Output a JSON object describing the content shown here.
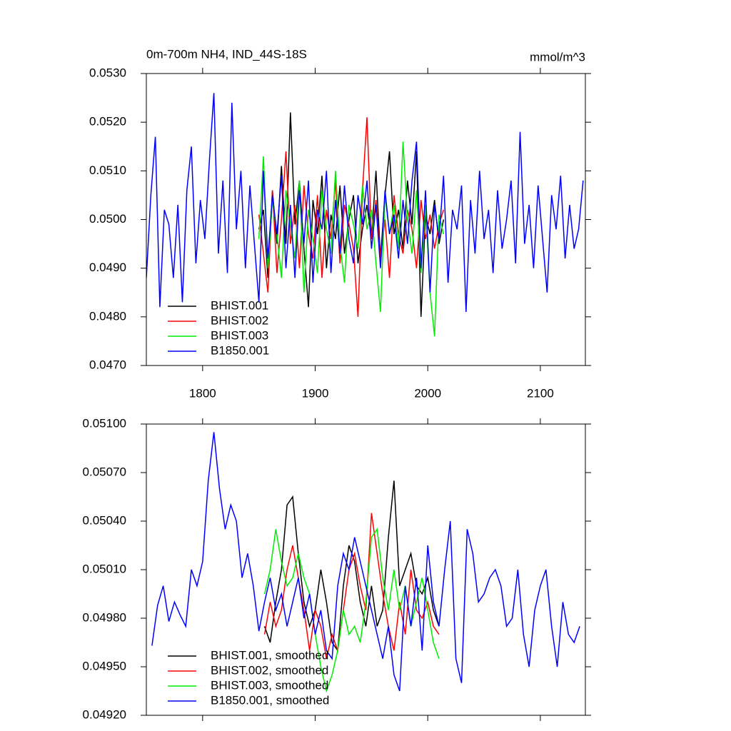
{
  "chart_data": [
    {
      "type": "line",
      "title": "0m-700m NH4, IND_44S-18S",
      "units": "mmol/m^3",
      "xlim": [
        1750,
        2140
      ],
      "xticks": [
        1800,
        1900,
        2000,
        2100
      ],
      "show_xtick_labels": true,
      "ylim": [
        0.047,
        0.053
      ],
      "yticks": [
        {
          "value": 0.047,
          "label": "0.0470"
        },
        {
          "value": 0.048,
          "label": "0.0480"
        },
        {
          "value": 0.049,
          "label": "0.0490"
        },
        {
          "value": 0.05,
          "label": "0.0500"
        },
        {
          "value": 0.051,
          "label": "0.0510"
        },
        {
          "value": 0.052,
          "label": "0.0520"
        },
        {
          "value": 0.053,
          "label": "0.0530"
        }
      ],
      "legend": "lower left",
      "series": [
        {
          "name": "BHIST.001",
          "color": "#000000",
          "x": [
            1850,
            1854,
            1858,
            1862,
            1866,
            1870,
            1874,
            1878,
            1882,
            1886,
            1890,
            1894,
            1898,
            1902,
            1906,
            1910,
            1914,
            1918,
            1922,
            1926,
            1930,
            1934,
            1938,
            1942,
            1946,
            1950,
            1954,
            1958,
            1962,
            1966,
            1970,
            1974,
            1978,
            1982,
            1986,
            1990,
            1994,
            1998,
            2002,
            2006,
            2010,
            2014
          ],
          "values": [
            0.0498,
            0.0502,
            0.0488,
            0.0506,
            0.0495,
            0.0511,
            0.0495,
            0.0522,
            0.0499,
            0.0508,
            0.0494,
            0.0482,
            0.0504,
            0.0497,
            0.0509,
            0.049,
            0.0501,
            0.0496,
            0.0507,
            0.0493,
            0.05,
            0.0505,
            0.0491,
            0.0498,
            0.0503,
            0.0496,
            0.051,
            0.0492,
            0.0505,
            0.0514,
            0.0497,
            0.0502,
            0.0494,
            0.0508,
            0.0499,
            0.0514,
            0.048,
            0.0501,
            0.0497,
            0.0504,
            0.0495,
            0.05
          ]
        },
        {
          "name": "BHIST.002",
          "color": "#ff0000",
          "x": [
            1850,
            1854,
            1858,
            1862,
            1866,
            1870,
            1874,
            1878,
            1882,
            1886,
            1890,
            1894,
            1898,
            1902,
            1906,
            1910,
            1914,
            1918,
            1922,
            1926,
            1930,
            1934,
            1938,
            1942,
            1946,
            1950,
            1954,
            1958,
            1962,
            1966,
            1970,
            1974,
            1978,
            1982,
            1986,
            1990,
            1994,
            1998,
            2002,
            2006,
            2010,
            2014
          ],
          "values": [
            0.0501,
            0.0493,
            0.0485,
            0.0506,
            0.0489,
            0.05,
            0.0514,
            0.0495,
            0.0503,
            0.049,
            0.0507,
            0.0497,
            0.0492,
            0.0505,
            0.0488,
            0.0502,
            0.0496,
            0.0508,
            0.0491,
            0.0503,
            0.0499,
            0.0494,
            0.048,
            0.0506,
            0.0521,
            0.0496,
            0.0504,
            0.0492,
            0.05,
            0.0488,
            0.0505,
            0.0497,
            0.0493,
            0.0502,
            0.0498,
            0.049,
            0.0504,
            0.0496,
            0.0501,
            0.0494,
            0.0499,
            0.0502
          ]
        },
        {
          "name": "BHIST.003",
          "color": "#00ee00",
          "x": [
            1850,
            1854,
            1858,
            1862,
            1866,
            1870,
            1874,
            1878,
            1882,
            1886,
            1890,
            1894,
            1898,
            1902,
            1906,
            1910,
            1914,
            1918,
            1922,
            1926,
            1930,
            1934,
            1938,
            1942,
            1946,
            1950,
            1954,
            1958,
            1962,
            1966,
            1970,
            1974,
            1978,
            1982,
            1986,
            1990,
            1994,
            1998,
            2002,
            2006,
            2010,
            2014
          ],
          "values": [
            0.0496,
            0.0513,
            0.049,
            0.0504,
            0.0497,
            0.0488,
            0.0506,
            0.0499,
            0.0492,
            0.0508,
            0.0485,
            0.0502,
            0.0496,
            0.0489,
            0.0506,
            0.0498,
            0.0493,
            0.051,
            0.0495,
            0.0487,
            0.0503,
            0.0499,
            0.0494,
            0.0507,
            0.0498,
            0.0502,
            0.0491,
            0.0481,
            0.0505,
            0.0497,
            0.0503,
            0.0494,
            0.0516,
            0.05,
            0.0493,
            0.0506,
            0.0489,
            0.0503,
            0.0485,
            0.0476,
            0.0501,
            0.0497
          ]
        },
        {
          "name": "B1850.001",
          "color": "#0000ff",
          "x": [
            1750,
            1754,
            1758,
            1762,
            1766,
            1770,
            1774,
            1778,
            1782,
            1786,
            1790,
            1794,
            1798,
            1802,
            1806,
            1810,
            1814,
            1818,
            1822,
            1826,
            1830,
            1834,
            1838,
            1842,
            1846,
            1850,
            1854,
            1858,
            1862,
            1866,
            1870,
            1874,
            1878,
            1882,
            1886,
            1890,
            1894,
            1898,
            1902,
            1906,
            1910,
            1914,
            1918,
            1922,
            1926,
            1930,
            1934,
            1938,
            1942,
            1946,
            1950,
            1954,
            1958,
            1962,
            1966,
            1970,
            1974,
            1978,
            1982,
            1986,
            1990,
            1994,
            1998,
            2002,
            2006,
            2010,
            2014,
            2018,
            2022,
            2026,
            2030,
            2034,
            2038,
            2042,
            2046,
            2050,
            2054,
            2058,
            2062,
            2066,
            2070,
            2074,
            2078,
            2082,
            2086,
            2090,
            2094,
            2098,
            2102,
            2106,
            2110,
            2114,
            2118,
            2122,
            2126,
            2130,
            2134,
            2138
          ],
          "values": [
            0.0488,
            0.0505,
            0.0517,
            0.0482,
            0.0502,
            0.0499,
            0.0488,
            0.0503,
            0.0483,
            0.0506,
            0.0515,
            0.0491,
            0.0504,
            0.0496,
            0.0512,
            0.0526,
            0.0493,
            0.0508,
            0.0489,
            0.0524,
            0.0498,
            0.051,
            0.049,
            0.0507,
            0.0495,
            0.0483,
            0.051,
            0.0492,
            0.0505,
            0.0497,
            0.0509,
            0.049,
            0.0503,
            0.0488,
            0.0506,
            0.0495,
            0.0508,
            0.0487,
            0.0502,
            0.0498,
            0.051,
            0.0489,
            0.0504,
            0.0493,
            0.0507,
            0.0496,
            0.0491,
            0.0505,
            0.0499,
            0.0508,
            0.0494,
            0.0503,
            0.049,
            0.0506,
            0.0497,
            0.0501,
            0.0492,
            0.0504,
            0.0495,
            0.0508,
            0.0516,
            0.049,
            0.0506,
            0.0485,
            0.0503,
            0.0496,
            0.0509,
            0.0487,
            0.0502,
            0.0498,
            0.0507,
            0.0481,
            0.0504,
            0.0493,
            0.051,
            0.0496,
            0.0502,
            0.0489,
            0.0506,
            0.0494,
            0.05,
            0.0508,
            0.0491,
            0.0518,
            0.0495,
            0.0503,
            0.049,
            0.0507,
            0.0496,
            0.0485,
            0.0505,
            0.0498,
            0.0509,
            0.0492,
            0.0503,
            0.0494,
            0.0498,
            0.0508
          ]
        }
      ]
    },
    {
      "type": "line",
      "xlim": [
        1750,
        2140
      ],
      "xticks": [
        1800,
        1900,
        2000,
        2100
      ],
      "show_xtick_labels": false,
      "ylim": [
        0.0492,
        0.051
      ],
      "yticks": [
        {
          "value": 0.0492,
          "label": "0.04920"
        },
        {
          "value": 0.0495,
          "label": "0.04950"
        },
        {
          "value": 0.0498,
          "label": "0.04980"
        },
        {
          "value": 0.0501,
          "label": "0.05010"
        },
        {
          "value": 0.0504,
          "label": "0.05040"
        },
        {
          "value": 0.0507,
          "label": "0.05070"
        },
        {
          "value": 0.051,
          "label": "0.05100"
        }
      ],
      "legend": "lower left",
      "series": [
        {
          "name": "BHIST.001, smoothed",
          "color": "#000000",
          "x": [
            1855,
            1860,
            1865,
            1870,
            1875,
            1880,
            1885,
            1890,
            1895,
            1900,
            1905,
            1910,
            1915,
            1920,
            1925,
            1930,
            1935,
            1940,
            1945,
            1950,
            1955,
            1960,
            1965,
            1970,
            1975,
            1980,
            1985,
            1990,
            1995,
            2000,
            2005,
            2010
          ],
          "values": [
            0.04975,
            0.04965,
            0.0499,
            0.0501,
            0.0505,
            0.05055,
            0.0502,
            0.0499,
            0.04975,
            0.04985,
            0.0501,
            0.0499,
            0.04965,
            0.0496,
            0.05,
            0.05025,
            0.05015,
            0.0499,
            0.04975,
            0.05,
            0.04975,
            0.04985,
            0.0503,
            0.05065,
            0.05,
            0.0501,
            0.0502,
            0.05,
            0.04995,
            0.05005,
            0.04985,
            0.04975
          ]
        },
        {
          "name": "BHIST.002, smoothed",
          "color": "#ff0000",
          "x": [
            1855,
            1860,
            1865,
            1870,
            1875,
            1880,
            1885,
            1890,
            1895,
            1900,
            1905,
            1910,
            1915,
            1920,
            1925,
            1930,
            1935,
            1940,
            1945,
            1950,
            1955,
            1960,
            1965,
            1970,
            1975,
            1980,
            1985,
            1990,
            1995,
            2000,
            2005,
            2010
          ],
          "values": [
            0.0497,
            0.0499,
            0.04975,
            0.04985,
            0.0501,
            0.05025,
            0.05005,
            0.04985,
            0.0496,
            0.04985,
            0.04975,
            0.04955,
            0.0497,
            0.0496,
            0.04985,
            0.0501,
            0.0502,
            0.05,
            0.04985,
            0.05045,
            0.0502,
            0.04995,
            0.04975,
            0.0496,
            0.0499,
            0.0497,
            0.0501,
            0.04985,
            0.0498,
            0.0499,
            0.04975,
            0.0497
          ]
        },
        {
          "name": "BHIST.003, smoothed",
          "color": "#00ee00",
          "x": [
            1855,
            1860,
            1865,
            1870,
            1875,
            1880,
            1885,
            1890,
            1895,
            1900,
            1905,
            1910,
            1915,
            1920,
            1925,
            1930,
            1935,
            1940,
            1945,
            1950,
            1955,
            1960,
            1965,
            1970,
            1975,
            1980,
            1985,
            1990,
            1995,
            2000,
            2005,
            2010
          ],
          "values": [
            0.04995,
            0.0501,
            0.05035,
            0.05015,
            0.05,
            0.05005,
            0.0502,
            0.05005,
            0.04995,
            0.0497,
            0.0495,
            0.04935,
            0.04945,
            0.0496,
            0.04985,
            0.0497,
            0.04975,
            0.04965,
            0.0499,
            0.0503,
            0.05035,
            0.05005,
            0.04985,
            0.0501,
            0.04985,
            0.05,
            0.04975,
            0.0499,
            0.05005,
            0.04985,
            0.04965,
            0.04955
          ]
        },
        {
          "name": "B1850.001, smoothed",
          "color": "#0000ff",
          "x": [
            1755,
            1760,
            1765,
            1770,
            1775,
            1780,
            1785,
            1790,
            1795,
            1800,
            1805,
            1810,
            1815,
            1820,
            1825,
            1830,
            1835,
            1840,
            1845,
            1850,
            1855,
            1860,
            1865,
            1870,
            1875,
            1880,
            1885,
            1890,
            1895,
            1900,
            1905,
            1910,
            1915,
            1920,
            1925,
            1930,
            1935,
            1940,
            1945,
            1950,
            1955,
            1960,
            1965,
            1970,
            1975,
            1980,
            1985,
            1990,
            1995,
            2000,
            2005,
            2010,
            2015,
            2020,
            2025,
            2030,
            2035,
            2040,
            2045,
            2050,
            2055,
            2060,
            2065,
            2070,
            2075,
            2080,
            2085,
            2090,
            2095,
            2100,
            2105,
            2110,
            2115,
            2120,
            2125,
            2130,
            2135
          ],
          "values": [
            0.04963,
            0.04988,
            0.05,
            0.04978,
            0.0499,
            0.04982,
            0.04975,
            0.0501,
            0.05,
            0.05015,
            0.05065,
            0.05095,
            0.0506,
            0.05035,
            0.0505,
            0.0504,
            0.05005,
            0.0502,
            0.05,
            0.04972,
            0.0499,
            0.05005,
            0.04985,
            0.04995,
            0.04975,
            0.0499,
            0.05005,
            0.0498,
            0.04995,
            0.0497,
            0.04985,
            0.0496,
            0.04955,
            0.05,
            0.0502,
            0.0501,
            0.0503,
            0.05015,
            0.05,
            0.04985,
            0.0497,
            0.04955,
            0.04975,
            0.04945,
            0.04935,
            0.05,
            0.04975,
            0.05005,
            0.0496,
            0.05025,
            0.0499,
            0.04975,
            0.0501,
            0.0504,
            0.04955,
            0.0494,
            0.05035,
            0.0502,
            0.0499,
            0.04995,
            0.05005,
            0.0501,
            0.05,
            0.04975,
            0.0498,
            0.0501,
            0.0497,
            0.0495,
            0.04985,
            0.05,
            0.0501,
            0.04975,
            0.0495,
            0.0499,
            0.0497,
            0.04965,
            0.04975
          ]
        }
      ]
    }
  ]
}
